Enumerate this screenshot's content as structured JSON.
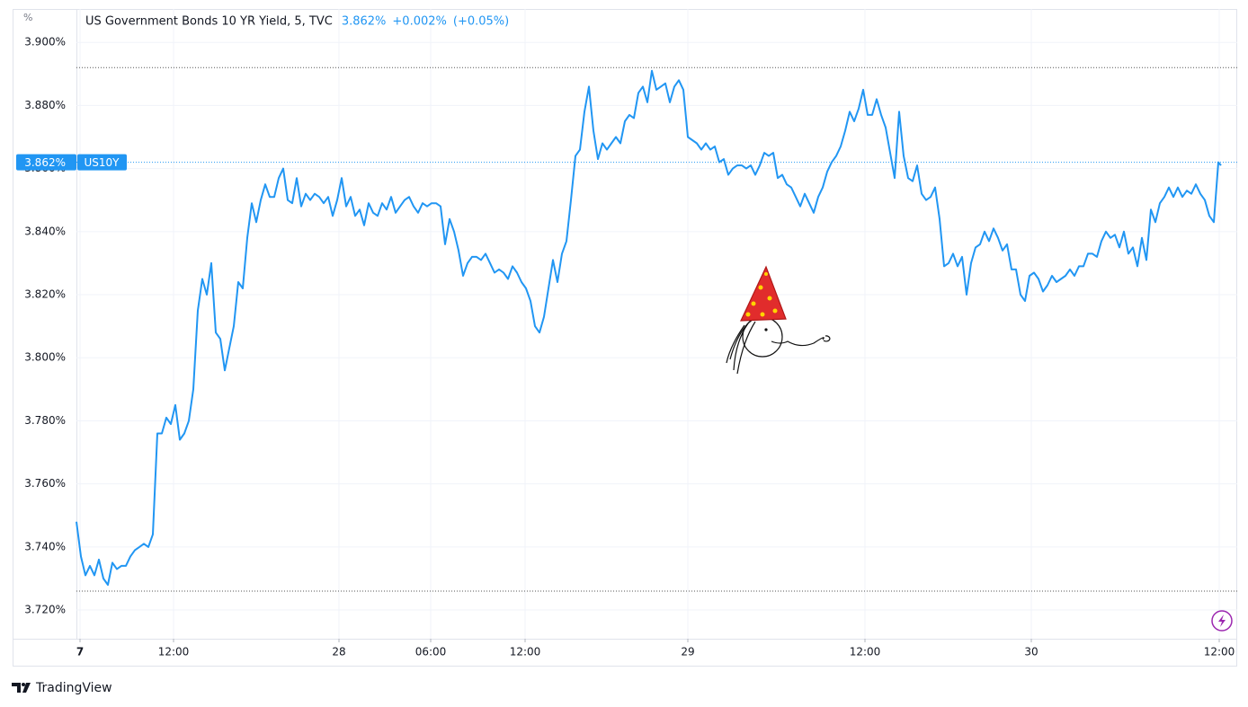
{
  "chart_data": {
    "type": "line",
    "title": "US Government Bonds 10 YR Yield, 5, TVC",
    "y_label": "%",
    "header": {
      "change": "+0.002%",
      "change_pct": "(+0.05%)"
    },
    "last_price": {
      "value": 3.862,
      "label": "3.862%"
    },
    "reference_lines": [
      3.892,
      3.726
    ],
    "brand": "TradingView",
    "grid": true,
    "xlim": [
      0,
      129.1
    ],
    "xticks": [
      {
        "value": 0.4,
        "label": "7"
      },
      {
        "value": 10.8,
        "label": "12:00"
      },
      {
        "value": 29.2,
        "label": "28"
      },
      {
        "value": 39.4,
        "label": "06:00"
      },
      {
        "value": 49.9,
        "label": "12:00"
      },
      {
        "value": 68,
        "label": "29"
      },
      {
        "value": 87.7,
        "label": "12:00"
      },
      {
        "value": 106.2,
        "label": "30"
      },
      {
        "value": 127.1,
        "label": "12:00"
      }
    ],
    "ylim": [
      3.7109,
      3.9106
    ],
    "yticks": [
      {
        "value": 3.72,
        "label": "3.720%"
      },
      {
        "value": 3.74,
        "label": "3.740%"
      },
      {
        "value": 3.76,
        "label": "3.760%"
      },
      {
        "value": 3.78,
        "label": "3.780%"
      },
      {
        "value": 3.8,
        "label": "3.800%"
      },
      {
        "value": 3.82,
        "label": "3.820%"
      },
      {
        "value": 3.84,
        "label": "3.840%"
      },
      {
        "value": 3.86,
        "label": "3.860%"
      },
      {
        "value": 3.88,
        "label": "3.880%"
      },
      {
        "value": 3.9,
        "label": "3.900%"
      }
    ],
    "x": [
      0,
      0.5,
      1,
      1.5,
      2,
      2.5,
      3,
      3.5,
      4,
      4.5,
      5,
      5.5,
      6,
      6.5,
      7,
      7.5,
      8,
      8.5,
      9,
      9.5,
      10,
      10.5,
      11,
      11.5,
      12,
      12.5,
      13,
      13.5,
      14,
      14.5,
      15,
      15.5,
      16,
      16.5,
      17,
      17.5,
      18,
      18.5,
      19,
      19.5,
      20,
      20.5,
      21,
      21.5,
      22,
      22.5,
      23,
      23.5,
      24,
      24.5,
      25,
      25.5,
      26,
      26.5,
      27,
      27.5,
      28,
      28.5,
      29,
      29.5,
      30,
      30.5,
      31,
      31.5,
      32,
      32.5,
      33,
      33.5,
      34,
      34.5,
      35,
      35.5,
      36,
      36.5,
      37,
      37.5,
      38,
      38.5,
      39,
      39.5,
      40,
      40.5,
      41,
      41.5,
      42,
      42.5,
      43,
      43.5,
      44,
      44.5,
      45,
      45.5,
      46,
      46.5,
      47,
      47.5,
      48,
      48.5,
      49,
      49.5,
      50,
      50.5,
      51,
      51.5,
      52,
      52.5,
      53,
      53.5,
      54,
      54.5,
      55,
      55.5,
      56,
      56.5,
      57,
      57.5,
      58,
      58.5,
      59,
      59.5,
      60,
      60.5,
      61,
      61.5,
      62,
      62.5,
      63,
      63.5,
      64,
      64.5,
      65,
      65.5,
      66,
      66.5,
      67,
      67.5,
      68,
      68.5,
      69,
      69.5,
      70,
      70.5,
      71,
      71.5,
      72,
      72.5,
      73,
      73.5,
      74,
      74.5,
      75,
      75.5,
      76,
      76.5,
      77,
      77.5,
      78,
      78.5,
      79,
      79.5,
      80,
      80.5,
      81,
      81.5,
      82,
      82.5,
      83,
      83.5,
      84,
      84.5,
      85,
      85.5,
      86,
      86.5,
      87,
      87.5,
      88,
      88.5,
      89,
      89.5,
      90,
      90.5,
      91,
      91.5,
      92,
      92.5,
      93,
      93.5,
      94,
      94.5,
      95,
      95.5,
      96,
      96.5,
      97,
      97.5,
      98,
      98.5,
      99,
      99.5,
      100,
      100.5,
      101,
      101.5,
      102,
      102.5,
      103,
      103.5,
      104,
      104.5,
      105,
      105.5,
      106,
      106.5,
      107,
      107.5,
      108,
      108.5,
      109,
      109.5,
      110,
      110.5,
      111,
      111.5,
      112,
      112.5,
      113,
      113.5,
      114,
      114.5,
      115,
      115.5,
      116,
      116.5,
      117,
      117.5,
      118,
      118.5,
      119,
      119.5,
      120,
      120.5,
      121,
      121.5,
      122,
      122.5,
      123,
      123.5,
      124,
      124.5,
      125,
      125.5,
      126,
      126.5,
      127,
      127.3
    ],
    "series": [
      {
        "name": "US10Y",
        "color": "#2196f3",
        "values": [
          3.748,
          3.737,
          3.731,
          3.734,
          3.731,
          3.736,
          3.73,
          3.728,
          3.735,
          3.733,
          3.734,
          3.734,
          3.737,
          3.739,
          3.74,
          3.741,
          3.74,
          3.744,
          3.776,
          3.776,
          3.781,
          3.779,
          3.785,
          3.774,
          3.776,
          3.78,
          3.79,
          3.815,
          3.825,
          3.82,
          3.83,
          3.808,
          3.806,
          3.796,
          3.803,
          3.81,
          3.824,
          3.822,
          3.838,
          3.849,
          3.843,
          3.85,
          3.855,
          3.851,
          3.851,
          3.857,
          3.86,
          3.85,
          3.849,
          3.857,
          3.848,
          3.852,
          3.85,
          3.852,
          3.851,
          3.849,
          3.851,
          3.845,
          3.85,
          3.857,
          3.848,
          3.851,
          3.845,
          3.847,
          3.842,
          3.849,
          3.846,
          3.845,
          3.849,
          3.847,
          3.851,
          3.846,
          3.848,
          3.85,
          3.851,
          3.848,
          3.846,
          3.849,
          3.848,
          3.849,
          3.849,
          3.848,
          3.836,
          3.844,
          3.84,
          3.834,
          3.826,
          3.83,
          3.832,
          3.832,
          3.831,
          3.833,
          3.83,
          3.827,
          3.828,
          3.827,
          3.825,
          3.829,
          3.827,
          3.824,
          3.822,
          3.818,
          3.81,
          3.808,
          3.813,
          3.822,
          3.831,
          3.824,
          3.833,
          3.837,
          3.85,
          3.864,
          3.866,
          3.878,
          3.886,
          3.872,
          3.863,
          3.868,
          3.866,
          3.868,
          3.87,
          3.868,
          3.875,
          3.877,
          3.876,
          3.884,
          3.886,
          3.881,
          3.891,
          3.885,
          3.886,
          3.887,
          3.881,
          3.886,
          3.888,
          3.885,
          3.87,
          3.869,
          3.868,
          3.866,
          3.868,
          3.866,
          3.867,
          3.862,
          3.863,
          3.858,
          3.86,
          3.861,
          3.861,
          3.86,
          3.861,
          3.858,
          3.861,
          3.865,
          3.864,
          3.865,
          3.857,
          3.858,
          3.855,
          3.854,
          3.851,
          3.848,
          3.852,
          3.849,
          3.846,
          3.851,
          3.854,
          3.859,
          3.862,
          3.864,
          3.867,
          3.872,
          3.878,
          3.875,
          3.879,
          3.885,
          3.877,
          3.877,
          3.882,
          3.877,
          3.873,
          3.865,
          3.857,
          3.878,
          3.864,
          3.857,
          3.856,
          3.861,
          3.852,
          3.85,
          3.851,
          3.854,
          3.844,
          3.829,
          3.83,
          3.833,
          3.829,
          3.832,
          3.82,
          3.83,
          3.835,
          3.836,
          3.84,
          3.837,
          3.841,
          3.838,
          3.834,
          3.836,
          3.828,
          3.828,
          3.82,
          3.818,
          3.826,
          3.827,
          3.825,
          3.821,
          3.823,
          3.826,
          3.824,
          3.825,
          3.826,
          3.828,
          3.826,
          3.829,
          3.829,
          3.833,
          3.833,
          3.832,
          3.837,
          3.84,
          3.838,
          3.839,
          3.835,
          3.84,
          3.833,
          3.835,
          3.829,
          3.838,
          3.831,
          3.847,
          3.843,
          3.849,
          3.851,
          3.854,
          3.851,
          3.854,
          3.851,
          3.853,
          3.852,
          3.855,
          3.852,
          3.85,
          3.845,
          3.843,
          3.862,
          3.861
        ]
      }
    ]
  }
}
